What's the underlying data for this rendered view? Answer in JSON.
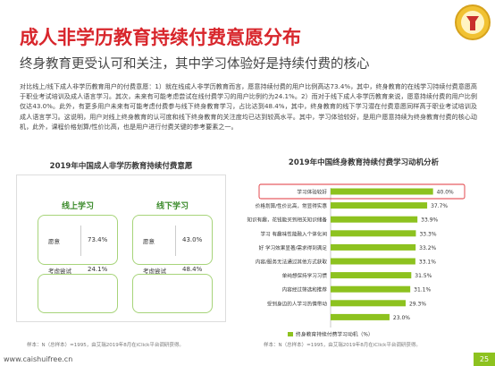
{
  "header": {
    "title": "成人非学历教育持续付费意愿分布",
    "subtitle": "终身教育更受认可和关注，其中学习体验好是持续付费的核心"
  },
  "body": "对比线上/线下成人非学历教育用户的付费意愿：1）就在线成人非学历教育而言，愿意持续付费的用户比例高达73.4%，其中，终身教育的在线学习持续付费意愿高于职业考试培训及成人语言学习。其次，未来有可能考虑尝试在线付费学习的用户比例约为24.1%。2）而对于线下成人非学历教育来说，愿意持续付费的用户比例仅达43.0%。此外，有更多用户未来有可能考虑付费参与线下终身教育学习，占比达到48.4%，其中，终身教育的线下学习潜在付费意愿同样高于职业考试培训及成人语言学习。这说明，用户对线上终身教育的认可度和线下终身教育的关注度均已达到较高水平。其中，学习体验较好，是用户愿意持续为终身教育付费的核心动机，此外，课程价格划算/性价比高，也是用户进行付费关键的参考要素之一。",
  "left_panel": {
    "title": "2019年中国成人非学历教育持续付费意愿",
    "groups": [
      {
        "name": "线上学习",
        "items": [
          {
            "label": "愿意",
            "value": "73.4%"
          },
          {
            "label": "考虑尝试",
            "value": "24.1%"
          }
        ]
      },
      {
        "name": "线下学习",
        "items": [
          {
            "label": "愿意",
            "value": "43.0%"
          },
          {
            "label": "考虑尝试",
            "value": "48.4%"
          }
        ]
      }
    ],
    "source": "样本：N（总样本）=1995，由艾瑞2019年8月在iClick平台调研获得。"
  },
  "chart_data": {
    "type": "hbar",
    "title": "2019年中国终身教育持续付费学习动机分析",
    "categories": [
      "学习体验较好",
      "价格划算/性价比高，常显得实惠",
      "知识有趣，花钱能买到相关知识储备",
      "学习 有趣味性能融入个体化间",
      "好 学习效果显著/需求得到满足",
      "内容/服务无法通过其他方式获取",
      "单纯想保持学习习惯",
      "内容经过筛选和推荐",
      "受到身边的人学习热情带动",
      null
    ],
    "series": [
      {
        "name": "终身教育持续付费学习动机（%）",
        "color": "#8dc21f",
        "values": [
          40.0,
          37.7,
          33.9,
          33.3,
          33.2,
          33.1,
          31.5,
          31.1,
          29.3,
          23.0
        ],
        "value_labels": [
          "40.0%",
          "37.7%",
          "33.9%",
          "33.3%",
          "33.2%",
          "33.1%",
          "31.5%",
          "31.1%",
          "29.3%",
          "23.0%"
        ]
      }
    ],
    "xlim": [
      0,
      45
    ],
    "highlight_color": "#e0363c",
    "source": "样本：N（总样本）=1995，由艾瑞2019年8月在iClick平台调研获得。"
  },
  "footer": {
    "site": "www.caishuifree.cn",
    "page": "25"
  }
}
